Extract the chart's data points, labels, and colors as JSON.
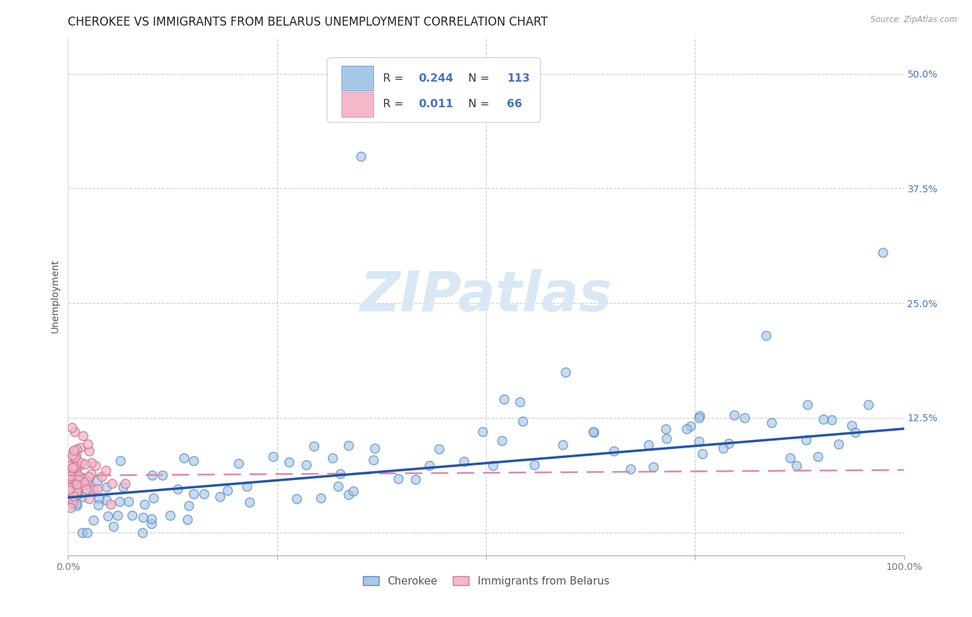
{
  "title": "CHEROKEE VS IMMIGRANTS FROM BELARUS UNEMPLOYMENT CORRELATION CHART",
  "source": "Source: ZipAtlas.com",
  "ylabel": "Unemployment",
  "cherokee_R": 0.244,
  "cherokee_N": 113,
  "belarus_R": 0.011,
  "belarus_N": 66,
  "cherokee_face_color": "#a8c8e8",
  "cherokee_edge_color": "#5588bb",
  "belarus_face_color": "#f4b8c8",
  "belarus_edge_color": "#cc7799",
  "cherokee_line_color": "#2255aa",
  "belarus_line_color": "#dd88aa",
  "watermark_color": "#d8e8f4",
  "tick_label_color": "#4472c4",
  "grid_color": "#cccccc",
  "title_color": "#222222",
  "source_color": "#999999",
  "legend_label_cherokee": "Cherokee",
  "legend_label_belarus": "Immigrants from Belarus",
  "cherokee_slope": 0.075,
  "cherokee_intercept": 0.038,
  "belarus_slope": 0.006,
  "belarus_intercept": 0.062
}
